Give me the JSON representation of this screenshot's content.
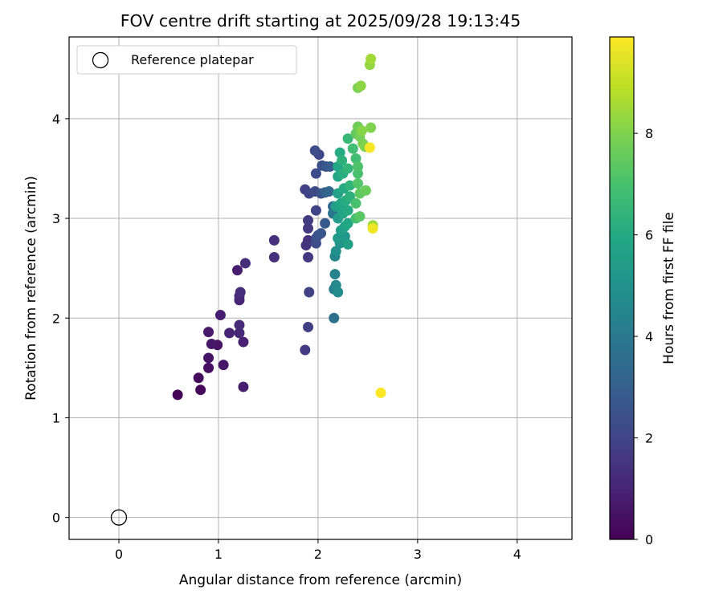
{
  "chart_data": {
    "type": "scatter",
    "title": "FOV centre drift starting at 2025/09/28 19:13:45",
    "xlabel": "Angular distance from reference (arcmin)",
    "ylabel": "Rotation from reference (arcmin)",
    "xlim": [
      -0.5,
      4.55
    ],
    "ylim": [
      -0.22,
      4.82
    ],
    "xticks": [
      0,
      1,
      2,
      3,
      4
    ],
    "yticks": [
      0,
      1,
      2,
      3,
      4
    ],
    "grid": true,
    "legend": {
      "position": "top-left",
      "label": "Reference platepar"
    },
    "reference_point": {
      "x": 0,
      "y": 0
    },
    "colorbar": {
      "label": "Hours from first FF file",
      "min": 0,
      "max": 9.9,
      "ticks": [
        0,
        2,
        4,
        6,
        8
      ],
      "colormap": "viridis"
    },
    "series": [
      {
        "points": [
          {
            "x": 0.59,
            "y": 1.23,
            "c": 0.1
          },
          {
            "x": 0.82,
            "y": 1.28,
            "c": 0.2
          },
          {
            "x": 0.8,
            "y": 1.4,
            "c": 0.3
          },
          {
            "x": 0.9,
            "y": 1.5,
            "c": 0.4
          },
          {
            "x": 0.9,
            "y": 1.6,
            "c": 0.5
          },
          {
            "x": 0.93,
            "y": 1.74,
            "c": 0.6
          },
          {
            "x": 0.99,
            "y": 1.73,
            "c": 0.5
          },
          {
            "x": 1.05,
            "y": 1.53,
            "c": 0.6
          },
          {
            "x": 0.9,
            "y": 1.86,
            "c": 0.7
          },
          {
            "x": 1.02,
            "y": 2.03,
            "c": 0.8
          },
          {
            "x": 1.11,
            "y": 1.85,
            "c": 1.0
          },
          {
            "x": 1.21,
            "y": 1.85,
            "c": 1.1
          },
          {
            "x": 1.21,
            "y": 1.93,
            "c": 1.2
          },
          {
            "x": 1.25,
            "y": 1.76,
            "c": 0.9
          },
          {
            "x": 1.25,
            "y": 1.31,
            "c": 0.8
          },
          {
            "x": 1.19,
            "y": 2.48,
            "c": 0.8
          },
          {
            "x": 1.21,
            "y": 2.18,
            "c": 1.0
          },
          {
            "x": 1.21,
            "y": 2.22,
            "c": 1.1
          },
          {
            "x": 1.22,
            "y": 2.26,
            "c": 1.3
          },
          {
            "x": 1.27,
            "y": 2.55,
            "c": 1.3
          },
          {
            "x": 1.56,
            "y": 2.78,
            "c": 1.4
          },
          {
            "x": 1.56,
            "y": 2.61,
            "c": 1.4
          },
          {
            "x": 1.87,
            "y": 1.68,
            "c": 1.7
          },
          {
            "x": 1.9,
            "y": 1.91,
            "c": 1.8
          },
          {
            "x": 1.91,
            "y": 2.26,
            "c": 1.9
          },
          {
            "x": 1.9,
            "y": 2.61,
            "c": 1.6
          },
          {
            "x": 1.88,
            "y": 2.73,
            "c": 1.5
          },
          {
            "x": 1.9,
            "y": 2.78,
            "c": 1.4
          },
          {
            "x": 1.9,
            "y": 2.9,
            "c": 1.6
          },
          {
            "x": 1.9,
            "y": 2.98,
            "c": 1.7
          },
          {
            "x": 1.87,
            "y": 3.29,
            "c": 1.9
          },
          {
            "x": 1.91,
            "y": 3.25,
            "c": 2.0
          },
          {
            "x": 1.97,
            "y": 3.27,
            "c": 2.2
          },
          {
            "x": 1.98,
            "y": 3.08,
            "c": 2.0
          },
          {
            "x": 1.98,
            "y": 3.45,
            "c": 2.3
          },
          {
            "x": 1.97,
            "y": 3.68,
            "c": 2.3
          },
          {
            "x": 2.01,
            "y": 3.64,
            "c": 2.1
          },
          {
            "x": 2.04,
            "y": 3.53,
            "c": 2.4
          },
          {
            "x": 2.08,
            "y": 3.52,
            "c": 2.6
          },
          {
            "x": 2.12,
            "y": 3.52,
            "c": 2.9
          },
          {
            "x": 2.03,
            "y": 3.25,
            "c": 2.5
          },
          {
            "x": 2.07,
            "y": 3.26,
            "c": 3.0
          },
          {
            "x": 2.11,
            "y": 3.27,
            "c": 3.3
          },
          {
            "x": 2.15,
            "y": 3.12,
            "c": 3.5
          },
          {
            "x": 2.15,
            "y": 3.05,
            "c": 3.8
          },
          {
            "x": 2.07,
            "y": 2.95,
            "c": 2.8
          },
          {
            "x": 2.03,
            "y": 2.85,
            "c": 2.6
          },
          {
            "x": 1.98,
            "y": 2.75,
            "c": 2.3
          },
          {
            "x": 1.98,
            "y": 2.8,
            "c": 2.4
          },
          {
            "x": 2.0,
            "y": 2.83,
            "c": 2.5
          },
          {
            "x": 2.16,
            "y": 2.0,
            "c": 3.7
          },
          {
            "x": 2.16,
            "y": 2.29,
            "c": 4.2
          },
          {
            "x": 2.18,
            "y": 2.33,
            "c": 4.6
          },
          {
            "x": 2.2,
            "y": 2.26,
            "c": 4.8
          },
          {
            "x": 2.17,
            "y": 2.44,
            "c": 4.4
          },
          {
            "x": 2.17,
            "y": 2.62,
            "c": 4.5
          },
          {
            "x": 2.18,
            "y": 2.67,
            "c": 4.9
          },
          {
            "x": 2.22,
            "y": 2.75,
            "c": 5.0
          },
          {
            "x": 2.27,
            "y": 2.82,
            "c": 5.2
          },
          {
            "x": 2.3,
            "y": 2.74,
            "c": 5.6
          },
          {
            "x": 2.2,
            "y": 2.8,
            "c": 5.3
          },
          {
            "x": 2.23,
            "y": 2.88,
            "c": 5.5
          },
          {
            "x": 2.27,
            "y": 2.92,
            "c": 5.7
          },
          {
            "x": 2.3,
            "y": 2.95,
            "c": 5.9
          },
          {
            "x": 2.2,
            "y": 3.0,
            "c": 5.5
          },
          {
            "x": 2.25,
            "y": 3.05,
            "c": 5.8
          },
          {
            "x": 2.3,
            "y": 3.08,
            "c": 6.0
          },
          {
            "x": 2.18,
            "y": 3.12,
            "c": 5.6
          },
          {
            "x": 2.23,
            "y": 3.15,
            "c": 5.9
          },
          {
            "x": 2.28,
            "y": 3.18,
            "c": 6.1
          },
          {
            "x": 2.32,
            "y": 3.22,
            "c": 6.3
          },
          {
            "x": 2.2,
            "y": 3.25,
            "c": 5.7
          },
          {
            "x": 2.26,
            "y": 3.3,
            "c": 6.0
          },
          {
            "x": 2.32,
            "y": 3.33,
            "c": 6.4
          },
          {
            "x": 2.2,
            "y": 3.42,
            "c": 5.8
          },
          {
            "x": 2.25,
            "y": 3.45,
            "c": 6.2
          },
          {
            "x": 2.3,
            "y": 3.5,
            "c": 6.5
          },
          {
            "x": 2.2,
            "y": 3.52,
            "c": 5.9
          },
          {
            "x": 2.24,
            "y": 3.58,
            "c": 6.3
          },
          {
            "x": 2.22,
            "y": 3.66,
            "c": 6.1
          },
          {
            "x": 2.3,
            "y": 3.8,
            "c": 6.6
          },
          {
            "x": 2.35,
            "y": 3.7,
            "c": 6.8
          },
          {
            "x": 2.38,
            "y": 3.6,
            "c": 6.9
          },
          {
            "x": 2.4,
            "y": 3.52,
            "c": 7.1
          },
          {
            "x": 2.4,
            "y": 3.45,
            "c": 7.0
          },
          {
            "x": 2.4,
            "y": 3.35,
            "c": 7.2
          },
          {
            "x": 2.42,
            "y": 3.25,
            "c": 7.4
          },
          {
            "x": 2.48,
            "y": 3.28,
            "c": 7.6
          },
          {
            "x": 2.38,
            "y": 3.15,
            "c": 7.0
          },
          {
            "x": 2.42,
            "y": 3.02,
            "c": 7.3
          },
          {
            "x": 2.38,
            "y": 3.0,
            "c": 6.9
          },
          {
            "x": 2.38,
            "y": 3.85,
            "c": 7.5
          },
          {
            "x": 2.4,
            "y": 3.92,
            "c": 7.7
          },
          {
            "x": 2.42,
            "y": 3.82,
            "c": 7.8
          },
          {
            "x": 2.45,
            "y": 3.75,
            "c": 7.9
          },
          {
            "x": 2.47,
            "y": 3.72,
            "c": 8.0
          },
          {
            "x": 2.44,
            "y": 3.88,
            "c": 8.1
          },
          {
            "x": 2.53,
            "y": 3.91,
            "c": 8.0
          },
          {
            "x": 2.55,
            "y": 2.93,
            "c": 8.4
          },
          {
            "x": 2.4,
            "y": 4.31,
            "c": 7.9
          },
          {
            "x": 2.43,
            "y": 4.33,
            "c": 8.2
          },
          {
            "x": 2.52,
            "y": 4.54,
            "c": 8.3
          },
          {
            "x": 2.53,
            "y": 4.6,
            "c": 8.5
          },
          {
            "x": 2.52,
            "y": 3.71,
            "c": 9.8
          },
          {
            "x": 2.55,
            "y": 2.9,
            "c": 9.7
          },
          {
            "x": 2.63,
            "y": 1.25,
            "c": 9.9
          }
        ]
      }
    ]
  }
}
